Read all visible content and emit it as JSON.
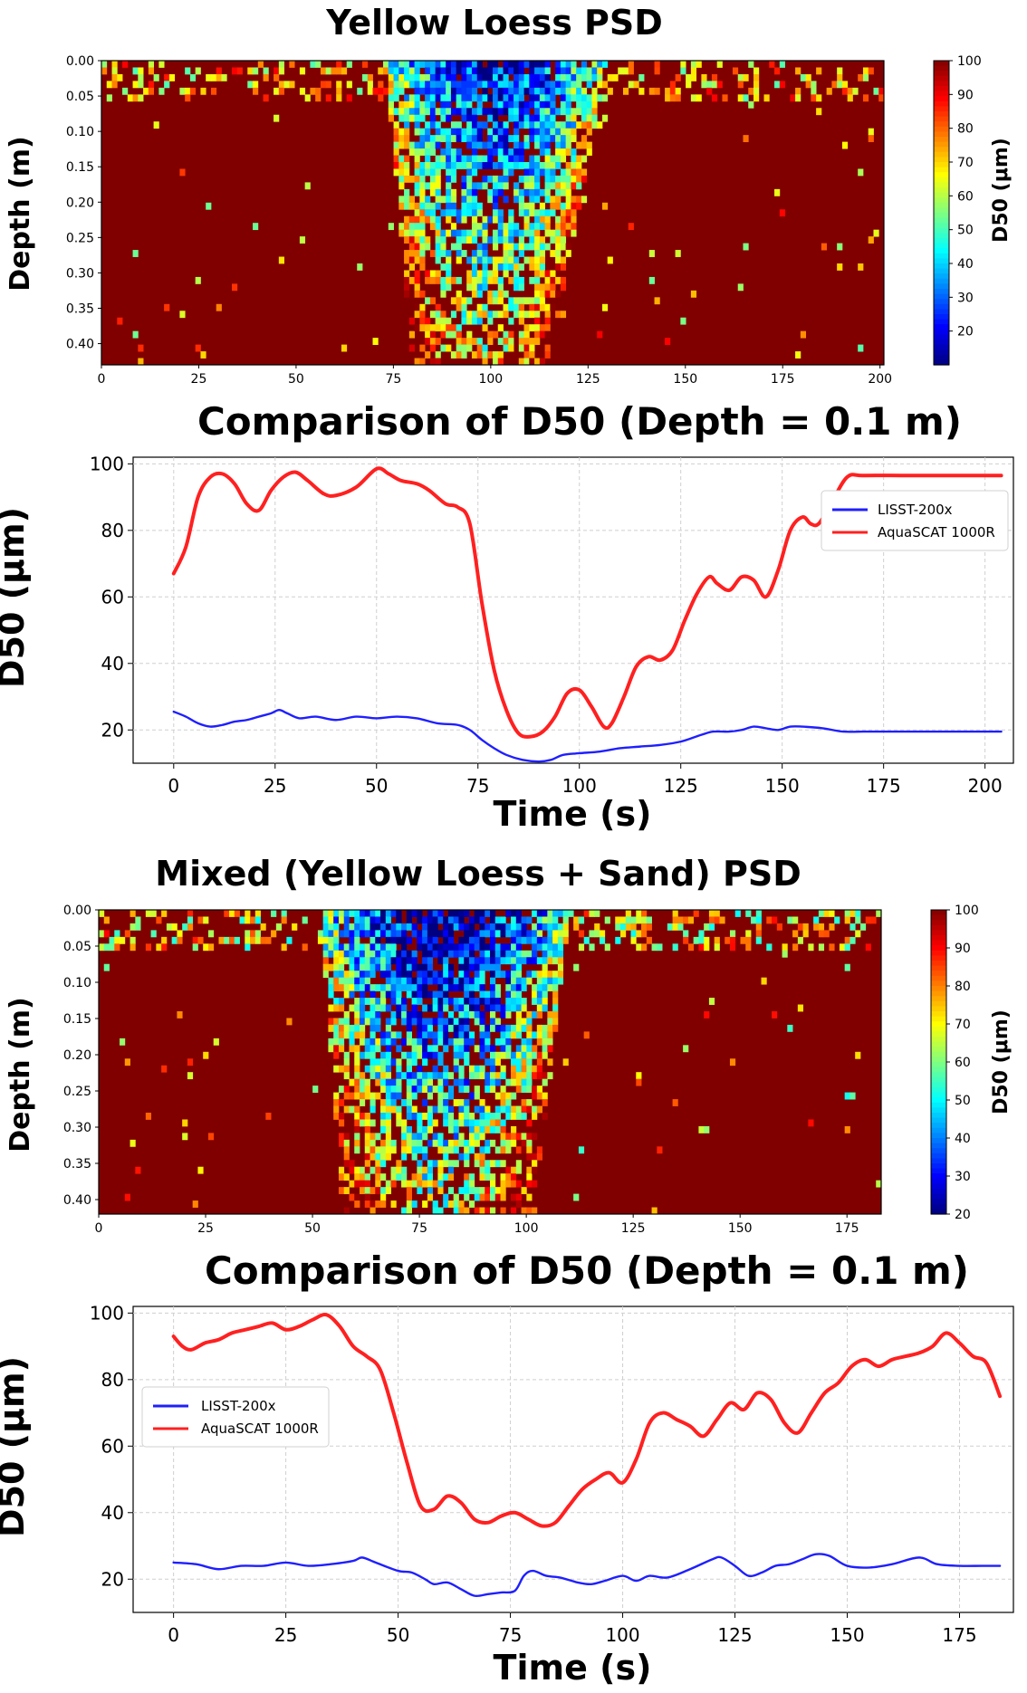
{
  "colors": {
    "lisst": "#1f1fff",
    "aquascat": "#ff2020",
    "grid": "#cfcfcf",
    "background": "#ffffff"
  },
  "chart_data": [
    {
      "type": "heatmap",
      "title": "Yellow Loess PSD",
      "xlabel": "",
      "ylabel": "Depth (m)",
      "xlim": [
        0,
        201
      ],
      "ylim": [
        0.0,
        0.43
      ],
      "xticks": [
        "0",
        "25",
        "50",
        "75",
        "100",
        "125",
        "150",
        "175",
        "200"
      ],
      "yticks": [
        "0.00",
        "0.05",
        "0.10",
        "0.15",
        "0.20",
        "0.25",
        "0.30",
        "0.35",
        "0.40"
      ],
      "colorbar": {
        "label": "D50 (μm)",
        "range": [
          10,
          100
        ],
        "ticks": [
          "100",
          "90",
          "80",
          "70",
          "60",
          "50",
          "40",
          "30",
          "20"
        ]
      },
      "colormap": "jet",
      "plume": {
        "start_s": 73,
        "end_s": 130,
        "tail_start_s": 80,
        "tail_end_s": 115,
        "min_d50": 20
      }
    },
    {
      "type": "line",
      "title": "Comparison of D50 (Depth = 0.1 m)",
      "xlabel": "Time (s)",
      "ylabel": "D50 (μm)",
      "xlim": [
        -10,
        207
      ],
      "ylim": [
        10,
        102
      ],
      "xticks": [
        "0",
        "25",
        "50",
        "75",
        "100",
        "125",
        "150",
        "175",
        "200"
      ],
      "yticks": [
        "20",
        "40",
        "60",
        "80",
        "100"
      ],
      "grid": true,
      "legend_position": "upper-right",
      "series": [
        {
          "name": "LISST-200x",
          "color": "#1f1fff",
          "x": [
            0,
            3,
            6,
            9,
            12,
            15,
            18,
            21,
            24,
            26,
            28,
            31,
            35,
            40,
            45,
            50,
            55,
            60,
            65,
            70,
            73,
            76,
            79,
            82,
            86,
            90,
            93,
            96,
            100,
            105,
            110,
            115,
            120,
            125,
            130,
            133,
            137,
            140,
            143,
            146,
            149,
            152,
            155,
            160,
            165,
            170,
            180,
            190,
            200,
            204
          ],
          "values": [
            25.5,
            24.0,
            22.0,
            21.0,
            21.5,
            22.5,
            23.0,
            24.0,
            25.0,
            26.0,
            25.0,
            23.5,
            24.0,
            23.0,
            24.0,
            23.5,
            24.0,
            23.5,
            22.0,
            21.5,
            20.0,
            17.0,
            14.5,
            12.5,
            11.0,
            10.5,
            11.0,
            12.5,
            13.0,
            13.5,
            14.5,
            15.0,
            15.5,
            16.5,
            18.5,
            19.5,
            19.5,
            20.0,
            21.0,
            20.5,
            20.0,
            21.0,
            21.0,
            20.5,
            19.5,
            19.5,
            19.5,
            19.5,
            19.5,
            19.5
          ]
        },
        {
          "name": "AquaSCAT 1000R",
          "color": "#ff2020",
          "x": [
            0,
            3,
            6,
            9,
            12,
            15,
            18,
            21,
            24,
            27,
            30,
            33,
            37,
            40,
            45,
            50,
            53,
            56,
            60,
            63,
            67,
            70,
            73,
            76,
            79,
            82,
            85,
            88,
            91,
            94,
            97,
            100,
            103,
            106,
            108,
            111,
            114,
            117,
            120,
            123,
            126,
            129,
            132,
            134,
            137,
            140,
            143,
            146,
            149,
            152,
            155,
            157,
            159,
            162,
            166,
            170,
            180,
            190,
            204
          ],
          "values": [
            67,
            75,
            90,
            96,
            97,
            94,
            88,
            86,
            92,
            96,
            97.5,
            95,
            91,
            90.5,
            93,
            98.5,
            97,
            95,
            94,
            92,
            88,
            87,
            82,
            58,
            38,
            26,
            19,
            18,
            19.5,
            24,
            31,
            32,
            27,
            21,
            22,
            30,
            39,
            42,
            41,
            44,
            53,
            61,
            66,
            64,
            62,
            66,
            65,
            60,
            68,
            80,
            84,
            82,
            82,
            88,
            96,
            96.5,
            96.5,
            96.5,
            96.5
          ]
        }
      ]
    },
    {
      "type": "heatmap",
      "title": "Mixed (Yellow Loess + Sand) PSD",
      "xlabel": "",
      "ylabel": "Depth (m)",
      "xlim": [
        0,
        183
      ],
      "ylim": [
        0.0,
        0.42
      ],
      "xticks": [
        "0",
        "25",
        "50",
        "75",
        "100",
        "125",
        "150",
        "175"
      ],
      "yticks": [
        "0.00",
        "0.05",
        "0.10",
        "0.15",
        "0.20",
        "0.25",
        "0.30",
        "0.35",
        "0.40"
      ],
      "colorbar": {
        "label": "D50 (μm)",
        "range": [
          20,
          100
        ],
        "ticks": [
          "100",
          "90",
          "80",
          "70",
          "60",
          "50",
          "40",
          "30",
          "20"
        ]
      },
      "colormap": "jet",
      "plume": {
        "start_s": 52,
        "end_s": 110,
        "tail_start_s": 57,
        "tail_end_s": 102,
        "min_d50": 22
      }
    },
    {
      "type": "line",
      "title": "Comparison of D50 (Depth = 0.1 m)",
      "xlabel": "Time (s)",
      "ylabel": "D50 (μm)",
      "xlim": [
        -9,
        187
      ],
      "ylim": [
        10,
        102
      ],
      "xticks": [
        "0",
        "25",
        "50",
        "75",
        "100",
        "125",
        "150",
        "175"
      ],
      "yticks": [
        "20",
        "40",
        "60",
        "80",
        "100"
      ],
      "grid": true,
      "legend_position": "upper-left",
      "series": [
        {
          "name": "LISST-200x",
          "color": "#1f1fff",
          "x": [
            0,
            5,
            10,
            15,
            20,
            25,
            30,
            35,
            40,
            42,
            45,
            50,
            53,
            56,
            58,
            61,
            64,
            67,
            70,
            73,
            76,
            78,
            80,
            83,
            86,
            90,
            93,
            96,
            100,
            103,
            106,
            110,
            115,
            120,
            122,
            125,
            128,
            131,
            134,
            137,
            140,
            143,
            146,
            150,
            155,
            160,
            166,
            170,
            175,
            180,
            184
          ],
          "values": [
            25.0,
            24.5,
            23.0,
            24.0,
            24.0,
            25.0,
            24.0,
            24.5,
            25.5,
            26.5,
            25.0,
            22.5,
            22.0,
            20.0,
            18.5,
            19.0,
            17.0,
            15.0,
            15.5,
            16.0,
            16.5,
            21.0,
            22.5,
            21.0,
            20.5,
            19.0,
            18.5,
            19.5,
            21.0,
            19.5,
            21.0,
            20.5,
            23.0,
            26.0,
            26.5,
            24.0,
            21.0,
            22.0,
            24.0,
            24.5,
            26.0,
            27.5,
            27.0,
            24.0,
            23.5,
            24.5,
            26.5,
            24.5,
            24.0,
            24.0,
            24.0
          ]
        },
        {
          "name": "AquaSCAT 1000R",
          "color": "#ff2020",
          "x": [
            0,
            2,
            4,
            7,
            10,
            13,
            16,
            19,
            22,
            25,
            28,
            31,
            34,
            37,
            40,
            43,
            46,
            49,
            52,
            55,
            58,
            61,
            64,
            67,
            70,
            73,
            76,
            79,
            82,
            85,
            88,
            91,
            94,
            97,
            100,
            103,
            106,
            109,
            112,
            115,
            118,
            121,
            124,
            127,
            130,
            133,
            136,
            139,
            142,
            145,
            148,
            151,
            154,
            157,
            160,
            163,
            166,
            169,
            172,
            175,
            178,
            181,
            184
          ],
          "values": [
            93,
            90,
            89,
            91,
            92,
            94,
            95,
            96,
            97,
            95,
            96,
            98,
            99.5,
            96,
            90,
            87,
            83,
            70,
            55,
            42,
            41,
            45,
            43,
            38,
            37,
            39,
            40,
            38,
            36,
            37,
            42,
            47,
            50,
            52,
            49,
            56,
            67,
            70,
            68,
            66,
            63,
            68,
            73,
            71,
            76,
            74,
            67,
            64,
            70,
            76,
            79,
            84,
            86,
            84,
            86,
            87,
            88,
            90,
            94,
            91,
            87,
            85,
            75
          ]
        }
      ]
    }
  ]
}
